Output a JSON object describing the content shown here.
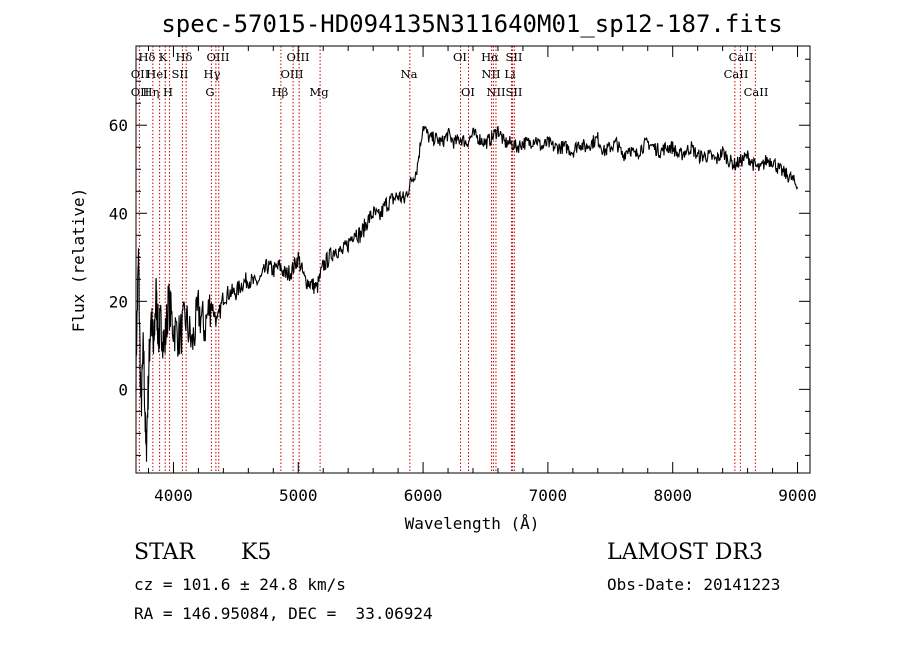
{
  "chart_data": {
    "type": "line",
    "title": "spec-57015-HD094135N311640M01_sp12-187.fits",
    "xlabel": "Wavelength (Å)",
    "ylabel": "Flux (relative)",
    "xlim": [
      3700,
      9100
    ],
    "ylim": [
      -19,
      78
    ],
    "x_ticks": [
      4000,
      5000,
      6000,
      7000,
      8000,
      9000
    ],
    "x_tick_labels": [
      "4000",
      "5000",
      "6000",
      "7000",
      "8000",
      "9000"
    ],
    "y_ticks": [
      0,
      20,
      40,
      60
    ],
    "y_tick_labels": [
      "0",
      "20",
      "40",
      "60"
    ],
    "series": [
      {
        "name": "flux",
        "x": [
          3700,
          3720,
          3740,
          3760,
          3780,
          3800,
          3820,
          3840,
          3860,
          3880,
          3900,
          3930,
          3960,
          4000,
          4050,
          4100,
          4150,
          4200,
          4250,
          4300,
          4350,
          4400,
          4450,
          4500,
          4550,
          4600,
          4650,
          4700,
          4750,
          4800,
          4850,
          4900,
          4950,
          5000,
          5050,
          5100,
          5150,
          5200,
          5250,
          5300,
          5350,
          5400,
          5450,
          5500,
          5550,
          5600,
          5650,
          5700,
          5750,
          5800,
          5850,
          5900,
          5950,
          6000,
          6050,
          6100,
          6150,
          6200,
          6250,
          6300,
          6350,
          6400,
          6450,
          6500,
          6550,
          6600,
          6650,
          6700,
          6750,
          6800,
          6850,
          6900,
          6950,
          7000,
          7050,
          7100,
          7150,
          7200,
          7250,
          7300,
          7350,
          7400,
          7450,
          7500,
          7550,
          7600,
          7650,
          7700,
          7750,
          7800,
          7850,
          7900,
          7950,
          8000,
          8050,
          8100,
          8150,
          8200,
          8250,
          8300,
          8350,
          8400,
          8450,
          8500,
          8550,
          8600,
          8650,
          8700,
          8750,
          8800,
          8850,
          8900,
          8950,
          9000
        ],
        "y": [
          5,
          30,
          -5,
          10,
          -15,
          2,
          18,
          8,
          22,
          12,
          15,
          10,
          20,
          14,
          12,
          16,
          10,
          18,
          14,
          20,
          15,
          21,
          22,
          22,
          24,
          25,
          24,
          25,
          28,
          27,
          28,
          26,
          27,
          30,
          25,
          24,
          23,
          28,
          30,
          32,
          31,
          33,
          36,
          35,
          38,
          40,
          39,
          42,
          43,
          44,
          43,
          47,
          50,
          60,
          57,
          57,
          56,
          58,
          56,
          57,
          56,
          58,
          57,
          56,
          57,
          59,
          56,
          56,
          55,
          56,
          56,
          57,
          55,
          56,
          55,
          55,
          55,
          54,
          56,
          55,
          56,
          57,
          54,
          55,
          56,
          53,
          55,
          53,
          55,
          56,
          55,
          54,
          55,
          55,
          53,
          54,
          55,
          53,
          53,
          53,
          52,
          54,
          52,
          51,
          52,
          53,
          51,
          50,
          52,
          52,
          50,
          49,
          48,
          46
        ]
      }
    ],
    "line_labels": [
      {
        "text": "Hδ",
        "wavelength": 4102
      },
      {
        "text": "OII",
        "wavelength": 3727
      },
      {
        "text": "OII",
        "wavelength": 3727
      },
      {
        "text": "K",
        "wavelength": 3934
      },
      {
        "text": "HeI",
        "wavelength": 3889
      },
      {
        "text": "Hη",
        "wavelength": 3835
      },
      {
        "text": "Hδ",
        "wavelength": 4102
      },
      {
        "text": "SII",
        "wavelength": 4072
      },
      {
        "text": "H",
        "wavelength": 3969
      },
      {
        "text": "OIII",
        "wavelength": 4363
      },
      {
        "text": "Hγ",
        "wavelength": 4340
      },
      {
        "text": "G",
        "wavelength": 4304
      },
      {
        "text": "Hβ",
        "wavelength": 4861
      },
      {
        "text": "OIII",
        "wavelength": 5007
      },
      {
        "text": "OIII",
        "wavelength": 4959
      },
      {
        "text": "Mg",
        "wavelength": 5175
      },
      {
        "text": "Na",
        "wavelength": 5894
      },
      {
        "text": "OI",
        "wavelength": 6300
      },
      {
        "text": "OI",
        "wavelength": 6364
      },
      {
        "text": "Hα",
        "wavelength": 6563
      },
      {
        "text": "SII",
        "wavelength": 6717
      },
      {
        "text": "NII",
        "wavelength": 6548
      },
      {
        "text": "Li",
        "wavelength": 6708
      },
      {
        "text": "NII",
        "wavelength": 6584
      },
      {
        "text": "SII",
        "wavelength": 6731
      },
      {
        "text": "CaII",
        "wavelength": 8542
      },
      {
        "text": "CaII",
        "wavelength": 8498
      },
      {
        "text": "CaII",
        "wavelength": 8662
      }
    ],
    "reference_lines": [
      3727,
      3835,
      3889,
      3934,
      3969,
      4072,
      4102,
      4304,
      4340,
      4363,
      4861,
      4959,
      5007,
      5175,
      5894,
      6300,
      6364,
      6548,
      6563,
      6584,
      6708,
      6717,
      6731,
      8498,
      8542,
      8662
    ],
    "colors": {
      "spectrum": "#000000",
      "reference_lines": "#cc0000",
      "axes": "#000000"
    }
  },
  "info": {
    "class": "STAR",
    "subclass": "K5",
    "survey": "LAMOST DR3",
    "redshift": "cz = 101.6 ± 24.8 km/s",
    "obs_date": "Obs-Date: 20141223",
    "coords": "RA = 146.95084, DEC =  33.06924"
  }
}
